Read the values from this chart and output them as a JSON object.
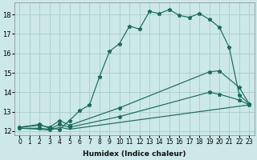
{
  "xlabel": "Humidex (Indice chaleur)",
  "bg_color": "#cce8e8",
  "grid_color": "#aacccc",
  "line_color": "#1a6b5a",
  "xlim": [
    -0.5,
    23.5
  ],
  "ylim": [
    11.8,
    18.6
  ],
  "yticks": [
    12,
    13,
    14,
    15,
    16,
    17,
    18
  ],
  "xticks": [
    0,
    1,
    2,
    3,
    4,
    5,
    6,
    7,
    8,
    9,
    10,
    11,
    12,
    13,
    14,
    15,
    16,
    17,
    18,
    19,
    20,
    21,
    22,
    23
  ],
  "line1_x": [
    0,
    2,
    3,
    4,
    5,
    6,
    7,
    8,
    9,
    10,
    11,
    12,
    13,
    14,
    15,
    16,
    17,
    18,
    19,
    20,
    21,
    22,
    23
  ],
  "line1_y": [
    12.2,
    12.35,
    12.15,
    12.1,
    12.55,
    13.05,
    13.35,
    14.8,
    16.1,
    16.5,
    17.4,
    17.25,
    18.15,
    18.05,
    18.25,
    17.95,
    17.85,
    18.05,
    17.75,
    17.35,
    16.3,
    13.85,
    13.4
  ],
  "line2_x": [
    0,
    2,
    3,
    4,
    5,
    10,
    19,
    20,
    22,
    23
  ],
  "line2_y": [
    12.2,
    12.3,
    12.2,
    12.55,
    12.3,
    13.2,
    15.05,
    15.1,
    14.25,
    13.4
  ],
  "line3_x": [
    0,
    2,
    3,
    4,
    5,
    10,
    19,
    20,
    22,
    23
  ],
  "line3_y": [
    12.15,
    12.15,
    12.1,
    12.35,
    12.2,
    12.75,
    14.0,
    13.9,
    13.6,
    13.35
  ],
  "line4_x": [
    0,
    2,
    3,
    4,
    5,
    23
  ],
  "line4_y": [
    12.15,
    12.1,
    12.05,
    12.2,
    12.1,
    13.35
  ]
}
